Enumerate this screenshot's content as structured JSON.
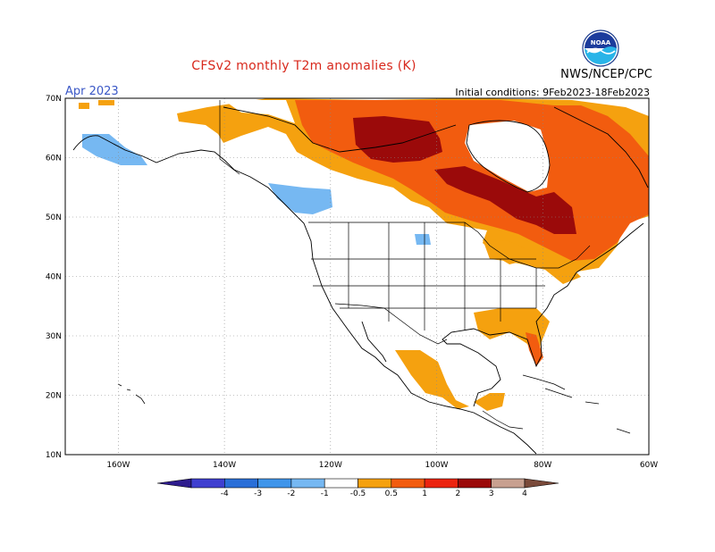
{
  "title": "CFSv2 monthly T2m anomalies (K)",
  "month_label": "Apr 2023",
  "agency": "NWS/NCEP/CPC",
  "initial_conditions": "Initial conditions:  9Feb2023-18Feb2023",
  "logo": {
    "icon": "noaa-logo-icon",
    "text": "NOAA"
  },
  "map": {
    "lat_range": [
      10,
      70
    ],
    "lon_range": [
      -170,
      -60
    ],
    "lat_ticks": [
      {
        "value": 10,
        "label": "10N"
      },
      {
        "value": 20,
        "label": "20N"
      },
      {
        "value": 30,
        "label": "30N"
      },
      {
        "value": 40,
        "label": "40N"
      },
      {
        "value": 50,
        "label": "50N"
      },
      {
        "value": 60,
        "label": "60N"
      },
      {
        "value": 70,
        "label": "70N"
      }
    ],
    "lon_ticks": [
      {
        "value": -160,
        "label": "160W"
      },
      {
        "value": -140,
        "label": "140W"
      },
      {
        "value": -120,
        "label": "120W"
      },
      {
        "value": -100,
        "label": "100W"
      },
      {
        "value": -80,
        "label": "80W"
      },
      {
        "value": -60,
        "label": "60W"
      }
    ]
  },
  "colorbar": {
    "labels": [
      "-4",
      "-3",
      "-2",
      "-1",
      "-0.5",
      "0.5",
      "1",
      "2",
      "3",
      "4"
    ],
    "colors": [
      "#2e1c8e",
      "#3f3fd0",
      "#2a6fd8",
      "#3f95ea",
      "#76b8f2",
      "#ffffff",
      "#f5a10f",
      "#f25c0f",
      "#ec2410",
      "#9b0a0a",
      "#c8a090",
      "#7a4a3a"
    ]
  }
}
